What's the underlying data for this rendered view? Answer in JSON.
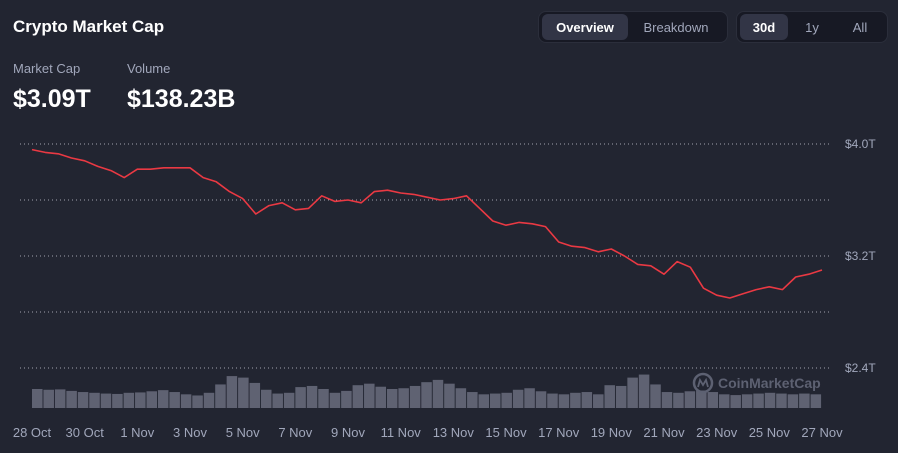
{
  "header": {
    "title": "Crypto Market Cap",
    "tabs": [
      {
        "label": "Overview",
        "active": true
      },
      {
        "label": "Breakdown",
        "active": false
      }
    ],
    "ranges": [
      {
        "label": "30d",
        "active": true
      },
      {
        "label": "1y",
        "active": false
      },
      {
        "label": "All",
        "active": false
      }
    ]
  },
  "stats": {
    "market_cap_label": "Market Cap",
    "market_cap_value": "$3.09T",
    "volume_label": "Volume",
    "volume_value": "$138.23B"
  },
  "watermark": "CoinMarketCap",
  "colors": {
    "background": "#222531",
    "line": "#ea3943",
    "volume": "#5f6272",
    "grid": "#d9dbe3",
    "muted_text": "#a1a7bb"
  },
  "icons": {
    "watermark_logo": "coinmarketcap-logo-icon"
  },
  "chart_data": {
    "type": "line",
    "title": "",
    "xlabel": "",
    "ylabel": "",
    "y_unit": "T USD",
    "ylim": [
      2.4,
      4.0
    ],
    "yticks": [
      {
        "value": 4.0,
        "label": "$4.0T"
      },
      {
        "value": 3.2,
        "label": "$3.2T"
      },
      {
        "value": 2.4,
        "label": "$2.4T"
      }
    ],
    "grid": true,
    "xticks": [
      "28 Oct",
      "30 Oct",
      "1 Nov",
      "3 Nov",
      "5 Nov",
      "7 Nov",
      "9 Nov",
      "11 Nov",
      "13 Nov",
      "15 Nov",
      "17 Nov",
      "19 Nov",
      "21 Nov",
      "23 Nov",
      "25 Nov",
      "27 Nov"
    ],
    "x_days_range": [
      0,
      30
    ],
    "series": [
      {
        "values_unit": "T USD",
        "x_days": [
          0,
          0.5,
          1,
          1.5,
          2,
          2.5,
          3,
          3.5,
          4,
          4.5,
          5,
          5.5,
          6,
          6.5,
          7,
          7.5,
          8,
          8.5,
          9,
          9.5,
          10,
          10.5,
          11,
          11.5,
          12,
          12.5,
          13,
          13.5,
          14,
          14.5,
          15,
          15.5,
          16,
          16.5,
          17,
          17.5,
          18,
          18.5,
          19,
          19.5,
          20,
          20.5,
          21,
          21.5,
          22,
          22.5,
          23,
          23.5,
          24,
          24.5,
          25,
          25.5,
          26,
          26.5,
          27,
          27.5,
          28,
          28.5,
          29,
          29.5,
          30
        ],
        "values": [
          3.96,
          3.94,
          3.93,
          3.9,
          3.88,
          3.84,
          3.81,
          3.76,
          3.82,
          3.82,
          3.83,
          3.83,
          3.83,
          3.76,
          3.73,
          3.66,
          3.61,
          3.5,
          3.56,
          3.58,
          3.53,
          3.54,
          3.63,
          3.59,
          3.6,
          3.58,
          3.66,
          3.67,
          3.65,
          3.64,
          3.62,
          3.6,
          3.61,
          3.63,
          3.54,
          3.45,
          3.42,
          3.44,
          3.43,
          3.41,
          3.3,
          3.27,
          3.26,
          3.23,
          3.25,
          3.2,
          3.14,
          3.13,
          3.07,
          3.16,
          3.12,
          2.97,
          2.92,
          2.9,
          2.93,
          2.96,
          2.98,
          2.96,
          3.05,
          3.07,
          3.1
        ]
      }
    ],
    "volume_relative": [
      0.5,
      0.48,
      0.49,
      0.45,
      0.42,
      0.4,
      0.38,
      0.37,
      0.4,
      0.41,
      0.44,
      0.47,
      0.42,
      0.36,
      0.33,
      0.4,
      0.62,
      0.84,
      0.8,
      0.66,
      0.48,
      0.38,
      0.4,
      0.55,
      0.58,
      0.5,
      0.4,
      0.45,
      0.6,
      0.64,
      0.56,
      0.5,
      0.52,
      0.58,
      0.68,
      0.74,
      0.64,
      0.52,
      0.42,
      0.36,
      0.38,
      0.4,
      0.48,
      0.52,
      0.44,
      0.38,
      0.36,
      0.4,
      0.42,
      0.36,
      0.6,
      0.58,
      0.8,
      0.88,
      0.62,
      0.42,
      0.4,
      0.44,
      0.46,
      0.42,
      0.36,
      0.34,
      0.36,
      0.38,
      0.4,
      0.38,
      0.36,
      0.38,
      0.36
    ]
  }
}
